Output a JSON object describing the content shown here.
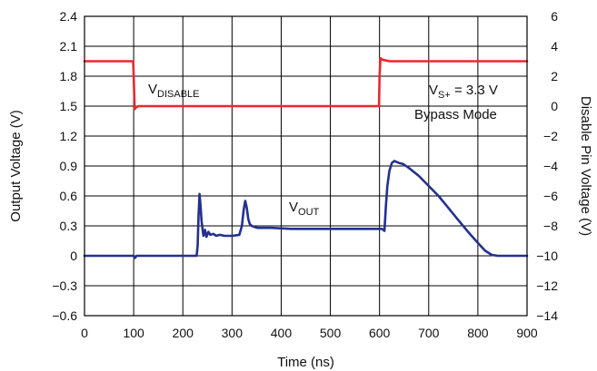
{
  "chart_data": {
    "type": "line",
    "xlabel": "Time (ns)",
    "ylabel_left": "Output Voltage (V)",
    "ylabel_right": "Disable Pin Voltage (V)",
    "xlim": [
      0,
      900
    ],
    "ylim_left": [
      -0.6,
      2.4
    ],
    "ylim_right": [
      -14,
      6
    ],
    "x_ticks": [
      "0",
      "100",
      "200",
      "300",
      "400",
      "500",
      "600",
      "700",
      "800",
      "900"
    ],
    "y_ticks_left": [
      "2.4",
      "2.1",
      "1.8",
      "1.5",
      "1.2",
      "0.9",
      "0.6",
      "0.3",
      "0",
      "-0.3",
      "-0.6"
    ],
    "y_ticks_right": [
      "6",
      "4",
      "2",
      "0",
      "-2",
      "-4",
      "-6",
      "-8",
      "-10",
      "-12",
      "-14"
    ],
    "grid": true,
    "annotations": {
      "vdisable_main": "V",
      "vdisable_sub": "DISABLE",
      "vout_main": "V",
      "vout_sub": "OUT",
      "supply_main": "V",
      "supply_sub": "S+",
      "supply_value": " = 3.3 V",
      "mode": "Bypass Mode"
    },
    "series": [
      {
        "name": "VDISABLE",
        "color": "#e8282e",
        "axis": "right",
        "x": [
          0,
          99,
          100,
          102,
          104,
          110,
          599,
          600,
          602,
          606,
          620,
          900
        ],
        "y": [
          3.0,
          3.0,
          2.0,
          -0.2,
          -0.1,
          0.0,
          0.0,
          2.0,
          3.2,
          3.1,
          3.0,
          3.0
        ]
      },
      {
        "name": "VOUT",
        "color": "#23318f",
        "axis": "left",
        "x": [
          0,
          100,
          103,
          106,
          228,
          230,
          232,
          234,
          236,
          238,
          240,
          242,
          245,
          248,
          252,
          256,
          262,
          268,
          275,
          285,
          300,
          315,
          320,
          324,
          327,
          330,
          333,
          336,
          340,
          345,
          352,
          360,
          380,
          420,
          500,
          560,
          605,
          610,
          613,
          616,
          620,
          625,
          630,
          635,
          640,
          648,
          660,
          680,
          700,
          720,
          740,
          760,
          780,
          800,
          815,
          828,
          840,
          860,
          900
        ],
        "y": [
          0.0,
          0.0,
          -0.02,
          0.0,
          0.0,
          0.1,
          0.4,
          0.62,
          0.5,
          0.35,
          0.27,
          0.2,
          0.26,
          0.19,
          0.24,
          0.21,
          0.22,
          0.2,
          0.21,
          0.2,
          0.2,
          0.21,
          0.3,
          0.47,
          0.55,
          0.48,
          0.37,
          0.32,
          0.3,
          0.29,
          0.28,
          0.28,
          0.28,
          0.27,
          0.27,
          0.27,
          0.27,
          0.25,
          0.5,
          0.7,
          0.85,
          0.93,
          0.95,
          0.94,
          0.93,
          0.92,
          0.88,
          0.8,
          0.7,
          0.6,
          0.48,
          0.36,
          0.24,
          0.13,
          0.05,
          0.01,
          0.0,
          0.0,
          0.0
        ]
      }
    ]
  }
}
